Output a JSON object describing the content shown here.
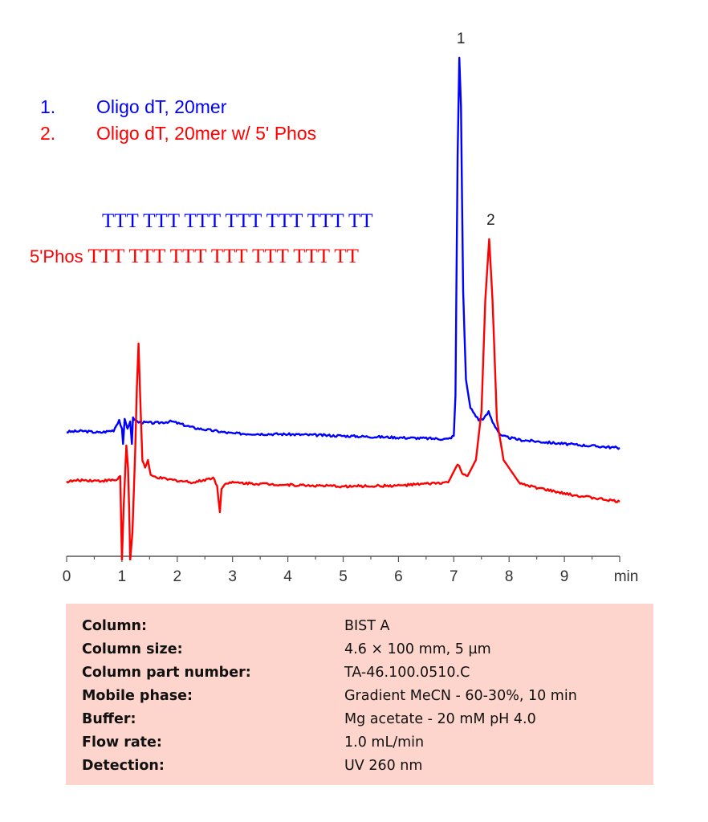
{
  "chart_data": {
    "type": "line",
    "xlabel": "min",
    "xlim": [
      0,
      10
    ],
    "x_ticks": [
      "0",
      "1",
      "2",
      "3",
      "4",
      "5",
      "6",
      "7",
      "8",
      "9"
    ],
    "y_axis_visible": false,
    "grid": false,
    "peak_labels": [
      {
        "text": "1",
        "x": 7.1,
        "series": 0
      },
      {
        "text": "2",
        "x": 7.64,
        "series": 1
      }
    ],
    "series": [
      {
        "color": "#0000ff",
        "points": [
          [
            0,
            155
          ],
          [
            0.3,
            156
          ],
          [
            0.6,
            154
          ],
          [
            0.85,
            157
          ],
          [
            0.95,
            170
          ],
          [
            1.0,
            158
          ],
          [
            1.02,
            140
          ],
          [
            1.05,
            170
          ],
          [
            1.1,
            160
          ],
          [
            1.15,
            168
          ],
          [
            1.18,
            140
          ],
          [
            1.2,
            172
          ],
          [
            1.3,
            167
          ],
          [
            1.6,
            166
          ],
          [
            1.9,
            168
          ],
          [
            2.3,
            160
          ],
          [
            2.8,
            155
          ],
          [
            3,
            153
          ],
          [
            4,
            152
          ],
          [
            5,
            150
          ],
          [
            6,
            148
          ],
          [
            6.9,
            146
          ],
          [
            7.0,
            150
          ],
          [
            7.03,
            200
          ],
          [
            7.07,
            500
          ],
          [
            7.1,
            621
          ],
          [
            7.13,
            560
          ],
          [
            7.17,
            330
          ],
          [
            7.22,
            220
          ],
          [
            7.3,
            185
          ],
          [
            7.45,
            170
          ],
          [
            7.55,
            172
          ],
          [
            7.63,
            180
          ],
          [
            7.7,
            168
          ],
          [
            7.85,
            150
          ],
          [
            8.2,
            145
          ],
          [
            9,
            140
          ],
          [
            10,
            135
          ]
        ]
      },
      {
        "color": "#ff0000",
        "points": [
          [
            0,
            93
          ],
          [
            0.3,
            95
          ],
          [
            0.6,
            94
          ],
          [
            0.9,
            95
          ],
          [
            0.97,
            100
          ],
          [
            1.0,
            -5
          ],
          [
            1.03,
            60
          ],
          [
            1.08,
            138
          ],
          [
            1.11,
            110
          ],
          [
            1.13,
            60
          ],
          [
            1.15,
            -5
          ],
          [
            1.19,
            30
          ],
          [
            1.24,
            130
          ],
          [
            1.27,
            210
          ],
          [
            1.3,
            265
          ],
          [
            1.33,
            200
          ],
          [
            1.37,
            120
          ],
          [
            1.42,
            110
          ],
          [
            1.47,
            120
          ],
          [
            1.52,
            100
          ],
          [
            1.8,
            96
          ],
          [
            2.3,
            92
          ],
          [
            2.65,
            98
          ],
          [
            2.72,
            88
          ],
          [
            2.77,
            55
          ],
          [
            2.8,
            85
          ],
          [
            2.9,
            92
          ],
          [
            4,
            89
          ],
          [
            5,
            87
          ],
          [
            6,
            88
          ],
          [
            6.9,
            92
          ],
          [
            7.07,
            115
          ],
          [
            7.15,
            104
          ],
          [
            7.25,
            100
          ],
          [
            7.4,
            120
          ],
          [
            7.5,
            180
          ],
          [
            7.57,
            320
          ],
          [
            7.64,
            395
          ],
          [
            7.7,
            320
          ],
          [
            7.78,
            170
          ],
          [
            7.9,
            120
          ],
          [
            8.2,
            90
          ],
          [
            9,
            78
          ],
          [
            10,
            68
          ]
        ]
      }
    ]
  },
  "legend": [
    {
      "num": "1.",
      "label": "Oligo dT, 20mer",
      "color": "#0000ff"
    },
    {
      "num": "2.",
      "label": "Oligo dT, 20mer w/ 5' Phos",
      "color": "#ff0000"
    }
  ],
  "sequences": [
    {
      "prefix": "",
      "seq": "TTT TTT TTT TTT TTT TTT TT",
      "color": "#0000ff"
    },
    {
      "prefix": "5'Phos",
      "seq": "TTT TTT TTT TTT TTT TTT TT",
      "color": "#ff0000"
    }
  ],
  "conditions": [
    {
      "key": "Column:",
      "value": "BIST A"
    },
    {
      "key": "Column size:",
      "value": "4.6 × 100 mm, 5 µm"
    },
    {
      "key": "Column part number:",
      "value": "TA-46.100.0510.C"
    },
    {
      "key": "Mobile phase:",
      "value": "Gradient  MeCN  - 60-30%, 10 min"
    },
    {
      "key": "Buffer:",
      "value": "Mg acetate - 20 mM  pH 4.0"
    },
    {
      "key": "Flow rate:",
      "value": "1.0 mL/min"
    },
    {
      "key": "Detection:",
      "value": "UV 260 nm"
    }
  ]
}
